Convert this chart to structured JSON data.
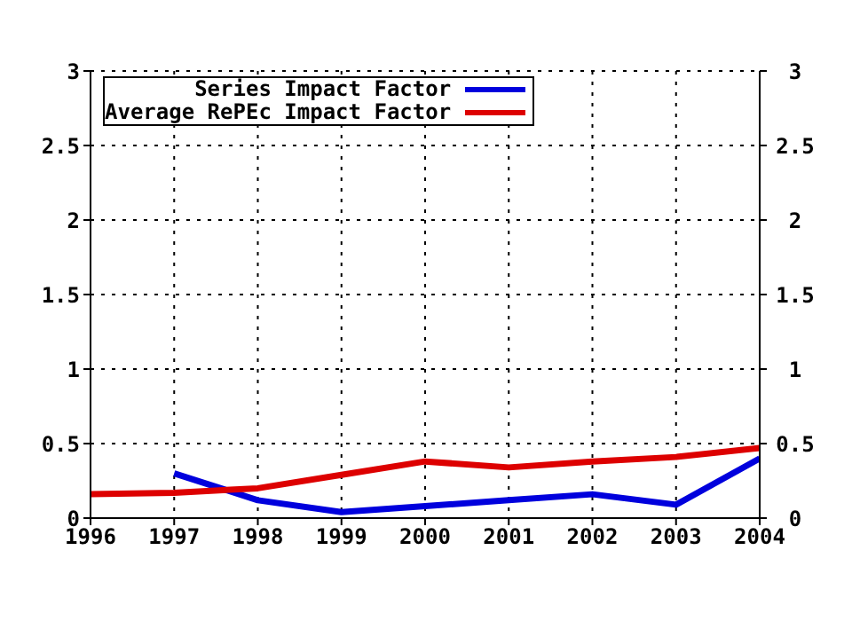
{
  "chart_data": {
    "type": "line",
    "x": [
      1996,
      1997,
      1998,
      1999,
      2000,
      2001,
      2002,
      2003,
      2004
    ],
    "series": [
      {
        "name": "Series Impact Factor",
        "color": "#0000dd",
        "values": [
          null,
          0.3,
          0.12,
          0.04,
          0.08,
          0.12,
          0.16,
          0.09,
          0.4
        ]
      },
      {
        "name": "Average RePEc Impact Factor",
        "color": "#dd0000",
        "values": [
          0.16,
          0.17,
          0.2,
          0.29,
          0.38,
          0.34,
          0.38,
          0.41,
          0.47
        ]
      }
    ],
    "xlim": [
      1996,
      2004
    ],
    "xticks": [
      1996,
      1997,
      1998,
      1999,
      2000,
      2001,
      2002,
      2003,
      2004
    ],
    "ylim": [
      0,
      3
    ],
    "yticks": [
      0,
      0.5,
      1,
      1.5,
      2,
      2.5,
      3
    ],
    "y2lim": [
      0,
      3
    ],
    "y2ticks": [
      0,
      0.5,
      1,
      1.5,
      2,
      2.5,
      3
    ],
    "grid": true,
    "legend": "top left",
    "marker": "none",
    "line_style": "solid"
  }
}
